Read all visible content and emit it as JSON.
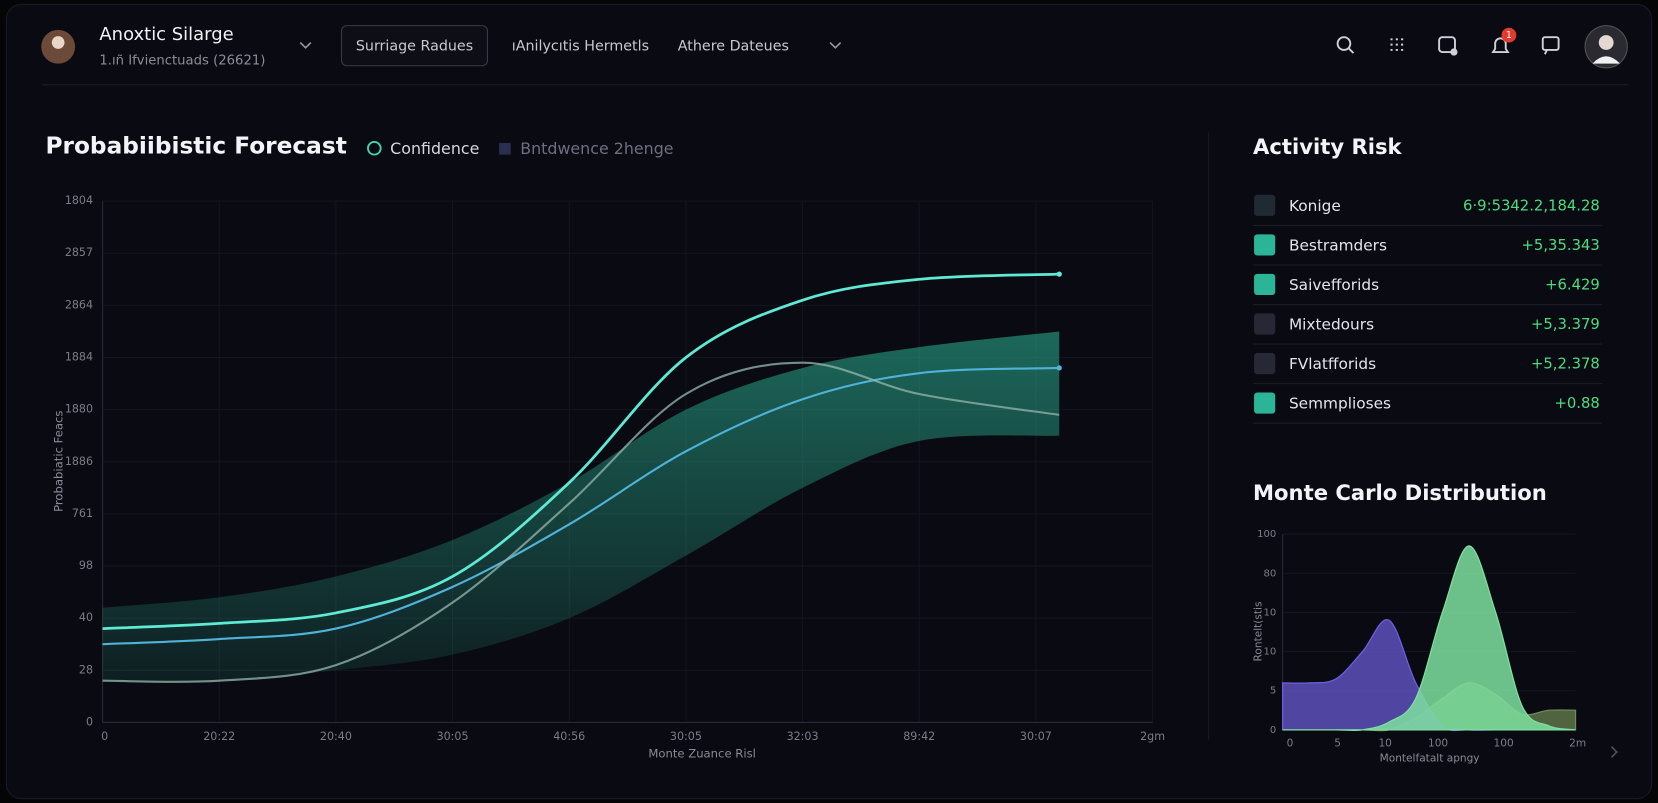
{
  "header": {
    "app_name": "Anoxtic Silarge",
    "app_subtitle": "1.ıñ Ifvienctuads (26621)",
    "nav": [
      "Surriage Radues",
      "ıAnilycıtis Hermetls",
      "Athere Dateues"
    ],
    "notification_count": "1"
  },
  "forecast": {
    "type": "line",
    "title": "Probabiibistic Forecast",
    "legend": [
      "Confidence",
      "Bntdwence 2henge"
    ],
    "y_axis_label": "Probabiatic Feacs",
    "x_axis_label": "Monte Zuance Risl",
    "y_labels": [
      "1804",
      "2857",
      "2864",
      "1884",
      "1880",
      "1886",
      "761",
      "98",
      "40",
      "28",
      "0"
    ],
    "x_labels": [
      "0",
      "20:22",
      "20:40",
      "30:05",
      "40:56",
      "30:05",
      "32:03",
      "89:42",
      "30:07",
      "2gm"
    ],
    "ylim": [
      0,
      10
    ],
    "xlim": [
      0,
      9
    ],
    "x": [
      0,
      1,
      2,
      3,
      4,
      5,
      6,
      7,
      8.2
    ],
    "band_color": "#2bb596",
    "band_upper": [
      2.2,
      2.4,
      2.8,
      3.5,
      4.6,
      6.0,
      6.8,
      7.2,
      7.5
    ],
    "band_lower": [
      0.8,
      0.8,
      1.0,
      1.3,
      2.0,
      3.2,
      4.5,
      5.4,
      5.5
    ],
    "series": [
      {
        "color": "#5eead4",
        "values": [
          1.8,
          1.9,
          2.1,
          2.8,
          4.6,
          7.0,
          8.1,
          8.5,
          8.6
        ]
      },
      {
        "color": "#4fb3d9",
        "values": [
          1.5,
          1.6,
          1.8,
          2.6,
          3.8,
          5.2,
          6.2,
          6.7,
          6.8
        ]
      },
      {
        "color": "#8fb0a8",
        "values": [
          0.8,
          0.8,
          1.1,
          2.3,
          4.2,
          6.3,
          6.9,
          6.3,
          5.9
        ]
      }
    ]
  },
  "activity_risk": {
    "title": "Activity Risk",
    "rows": [
      {
        "name": "Konige",
        "value": "6·9:5342.2,184.28"
      },
      {
        "name": "Bestramders",
        "value": "+5,35.343"
      },
      {
        "name": "Saivefforids",
        "value": "+6.429"
      },
      {
        "name": "Mixtedours",
        "value": "+5,3.379"
      },
      {
        "name": "FVlatfforids",
        "value": "+5,2.378"
      },
      {
        "name": "Semmplioses",
        "value": "+0.88"
      }
    ]
  },
  "monte_carlo": {
    "type": "area",
    "title": "Monte Carlo Distribution",
    "y_axis_label": "Rontelt(stis",
    "x_axis_label": "Montelfatalt apngy",
    "y_labels": [
      "100",
      "80",
      "10",
      "10",
      "5",
      "0"
    ],
    "x_labels": [
      "0",
      "5",
      "10",
      "100",
      "100",
      "2m"
    ],
    "ylim": [
      0,
      5
    ],
    "xlim": [
      0,
      11
    ],
    "x": [
      0,
      1,
      2,
      3,
      4,
      5,
      6,
      7,
      8,
      9,
      10,
      11
    ],
    "series": [
      {
        "color": "#6d5fe0",
        "values": [
          1.2,
          1.2,
          1.3,
          2.0,
          2.8,
          1.2,
          0.1,
          0,
          0,
          0,
          0,
          0
        ]
      },
      {
        "color": "#7ee0a0",
        "values": [
          0,
          0,
          0,
          0,
          0.2,
          0.8,
          3.0,
          4.7,
          3.0,
          0.6,
          0.1,
          0
        ]
      },
      {
        "color": "#6f8a55",
        "values": [
          0,
          0,
          0,
          0,
          0,
          0.3,
          0.8,
          1.2,
          0.9,
          0.4,
          0.5,
          0.5
        ]
      }
    ]
  }
}
